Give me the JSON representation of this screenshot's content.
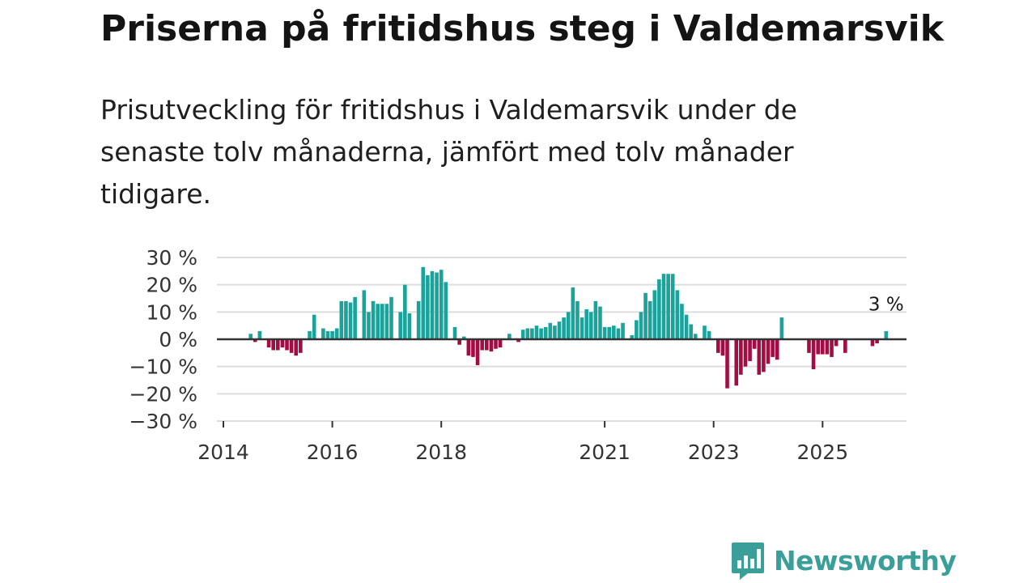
{
  "header": {
    "title": "Priserna på fritidshus steg i Valdemarsvik",
    "subtitle": "Prisutveckling för fritidshus i Valdemarsvik under de senaste tolv månaderna, jämfört med tolv månader tidigare."
  },
  "brand": {
    "name": "Newsworthy",
    "icon": "newsworthy-logo-icon"
  },
  "colors": {
    "positive": "#1aa39a",
    "negative": "#a30d44",
    "grid": "#dddddd",
    "axis": "#333333",
    "brand": "#3a9f99"
  },
  "chart_data": {
    "type": "bar",
    "title": "Priserna på fritidshus steg i Valdemarsvik",
    "xlabel": "",
    "ylabel": "",
    "ylim": [
      -30,
      30
    ],
    "yticks": [
      30,
      20,
      10,
      0,
      -10,
      -20,
      -30
    ],
    "ytick_labels": [
      "30 %",
      "20 %",
      "10 %",
      "0 %",
      "−10 %",
      "−20 %",
      "−30 %"
    ],
    "xlim": [
      "2014-01",
      "2026-06"
    ],
    "xticks": [
      "2014",
      "2016",
      "2018",
      "2021",
      "2023",
      "2025"
    ],
    "annotation": {
      "text": "3 %",
      "target": "2026-03"
    },
    "series": [
      {
        "name": "Prisutveckling",
        "points": [
          {
            "x": "2014-07",
            "y": 2
          },
          {
            "x": "2014-08",
            "y": -1
          },
          {
            "x": "2014-09",
            "y": 3
          },
          {
            "x": "2014-11",
            "y": -3
          },
          {
            "x": "2014-12",
            "y": -4
          },
          {
            "x": "2015-01",
            "y": -4
          },
          {
            "x": "2015-02",
            "y": -3
          },
          {
            "x": "2015-03",
            "y": -4
          },
          {
            "x": "2015-04",
            "y": -5
          },
          {
            "x": "2015-05",
            "y": -6
          },
          {
            "x": "2015-06",
            "y": -5
          },
          {
            "x": "2015-08",
            "y": 3
          },
          {
            "x": "2015-09",
            "y": 9
          },
          {
            "x": "2015-11",
            "y": 4
          },
          {
            "x": "2015-12",
            "y": 3
          },
          {
            "x": "2016-01",
            "y": 3
          },
          {
            "x": "2016-02",
            "y": 4
          },
          {
            "x": "2016-03",
            "y": 14
          },
          {
            "x": "2016-04",
            "y": 14
          },
          {
            "x": "2016-05",
            "y": 13.5
          },
          {
            "x": "2016-06",
            "y": 15.5
          },
          {
            "x": "2016-08",
            "y": 18
          },
          {
            "x": "2016-09",
            "y": 10
          },
          {
            "x": "2016-10",
            "y": 14
          },
          {
            "x": "2016-11",
            "y": 13
          },
          {
            "x": "2016-12",
            "y": 13
          },
          {
            "x": "2017-01",
            "y": 13
          },
          {
            "x": "2017-02",
            "y": 15.5
          },
          {
            "x": "2017-04",
            "y": 10
          },
          {
            "x": "2017-05",
            "y": 20
          },
          {
            "x": "2017-06",
            "y": 9.5
          },
          {
            "x": "2017-08",
            "y": 14
          },
          {
            "x": "2017-09",
            "y": 26.5
          },
          {
            "x": "2017-10",
            "y": 23.5
          },
          {
            "x": "2017-11",
            "y": 25
          },
          {
            "x": "2017-12",
            "y": 24.5
          },
          {
            "x": "2018-01",
            "y": 25.5
          },
          {
            "x": "2018-02",
            "y": 21
          },
          {
            "x": "2018-04",
            "y": 4.5
          },
          {
            "x": "2018-05",
            "y": -2
          },
          {
            "x": "2018-06",
            "y": 1
          },
          {
            "x": "2018-07",
            "y": -6
          },
          {
            "x": "2018-08",
            "y": -6.5
          },
          {
            "x": "2018-09",
            "y": -9.5
          },
          {
            "x": "2018-10",
            "y": -4
          },
          {
            "x": "2018-11",
            "y": -4
          },
          {
            "x": "2018-12",
            "y": -4.5
          },
          {
            "x": "2019-01",
            "y": -3.5
          },
          {
            "x": "2019-02",
            "y": -3
          },
          {
            "x": "2019-04",
            "y": 2
          },
          {
            "x": "2019-06",
            "y": -1
          },
          {
            "x": "2019-07",
            "y": 3.5
          },
          {
            "x": "2019-08",
            "y": 4
          },
          {
            "x": "2019-09",
            "y": 4
          },
          {
            "x": "2019-10",
            "y": 5
          },
          {
            "x": "2019-11",
            "y": 4
          },
          {
            "x": "2019-12",
            "y": 4.5
          },
          {
            "x": "2020-01",
            "y": 6
          },
          {
            "x": "2020-02",
            "y": 5
          },
          {
            "x": "2020-03",
            "y": 6.5
          },
          {
            "x": "2020-04",
            "y": 8
          },
          {
            "x": "2020-05",
            "y": 10
          },
          {
            "x": "2020-06",
            "y": 19
          },
          {
            "x": "2020-07",
            "y": 14
          },
          {
            "x": "2020-08",
            "y": 8
          },
          {
            "x": "2020-09",
            "y": 11
          },
          {
            "x": "2020-10",
            "y": 10
          },
          {
            "x": "2020-11",
            "y": 14
          },
          {
            "x": "2020-12",
            "y": 12
          },
          {
            "x": "2021-01",
            "y": 4.5
          },
          {
            "x": "2021-02",
            "y": 4.5
          },
          {
            "x": "2021-03",
            "y": 5
          },
          {
            "x": "2021-04",
            "y": 4
          },
          {
            "x": "2021-05",
            "y": 6
          },
          {
            "x": "2021-07",
            "y": 1.5
          },
          {
            "x": "2021-08",
            "y": 7
          },
          {
            "x": "2021-09",
            "y": 10
          },
          {
            "x": "2021-10",
            "y": 17
          },
          {
            "x": "2021-11",
            "y": 14
          },
          {
            "x": "2021-12",
            "y": 18
          },
          {
            "x": "2022-01",
            "y": 22
          },
          {
            "x": "2022-02",
            "y": 24
          },
          {
            "x": "2022-03",
            "y": 24
          },
          {
            "x": "2022-04",
            "y": 24
          },
          {
            "x": "2022-05",
            "y": 18
          },
          {
            "x": "2022-06",
            "y": 13
          },
          {
            "x": "2022-07",
            "y": 9
          },
          {
            "x": "2022-08",
            "y": 5.5
          },
          {
            "x": "2022-09",
            "y": 2
          },
          {
            "x": "2022-11",
            "y": 5
          },
          {
            "x": "2022-12",
            "y": 3
          },
          {
            "x": "2023-02",
            "y": -5
          },
          {
            "x": "2023-03",
            "y": -6
          },
          {
            "x": "2023-04",
            "y": -18
          },
          {
            "x": "2023-06",
            "y": -17
          },
          {
            "x": "2023-07",
            "y": -13
          },
          {
            "x": "2023-08",
            "y": -10
          },
          {
            "x": "2023-09",
            "y": -8
          },
          {
            "x": "2023-10",
            "y": -3.5
          },
          {
            "x": "2023-11",
            "y": -13
          },
          {
            "x": "2023-12",
            "y": -12
          },
          {
            "x": "2024-01",
            "y": -9
          },
          {
            "x": "2024-02",
            "y": -6.5
          },
          {
            "x": "2024-03",
            "y": -7.5
          },
          {
            "x": "2024-04",
            "y": 8
          },
          {
            "x": "2024-10",
            "y": -5
          },
          {
            "x": "2024-11",
            "y": -11
          },
          {
            "x": "2024-12",
            "y": -5.5
          },
          {
            "x": "2025-01",
            "y": -5.5
          },
          {
            "x": "2025-02",
            "y": -5.5
          },
          {
            "x": "2025-03",
            "y": -6.5
          },
          {
            "x": "2025-04",
            "y": -2.5
          },
          {
            "x": "2025-06",
            "y": -5
          },
          {
            "x": "2025-12",
            "y": -2.5
          },
          {
            "x": "2026-01",
            "y": -1.5
          },
          {
            "x": "2026-03",
            "y": 3
          }
        ]
      }
    ]
  }
}
